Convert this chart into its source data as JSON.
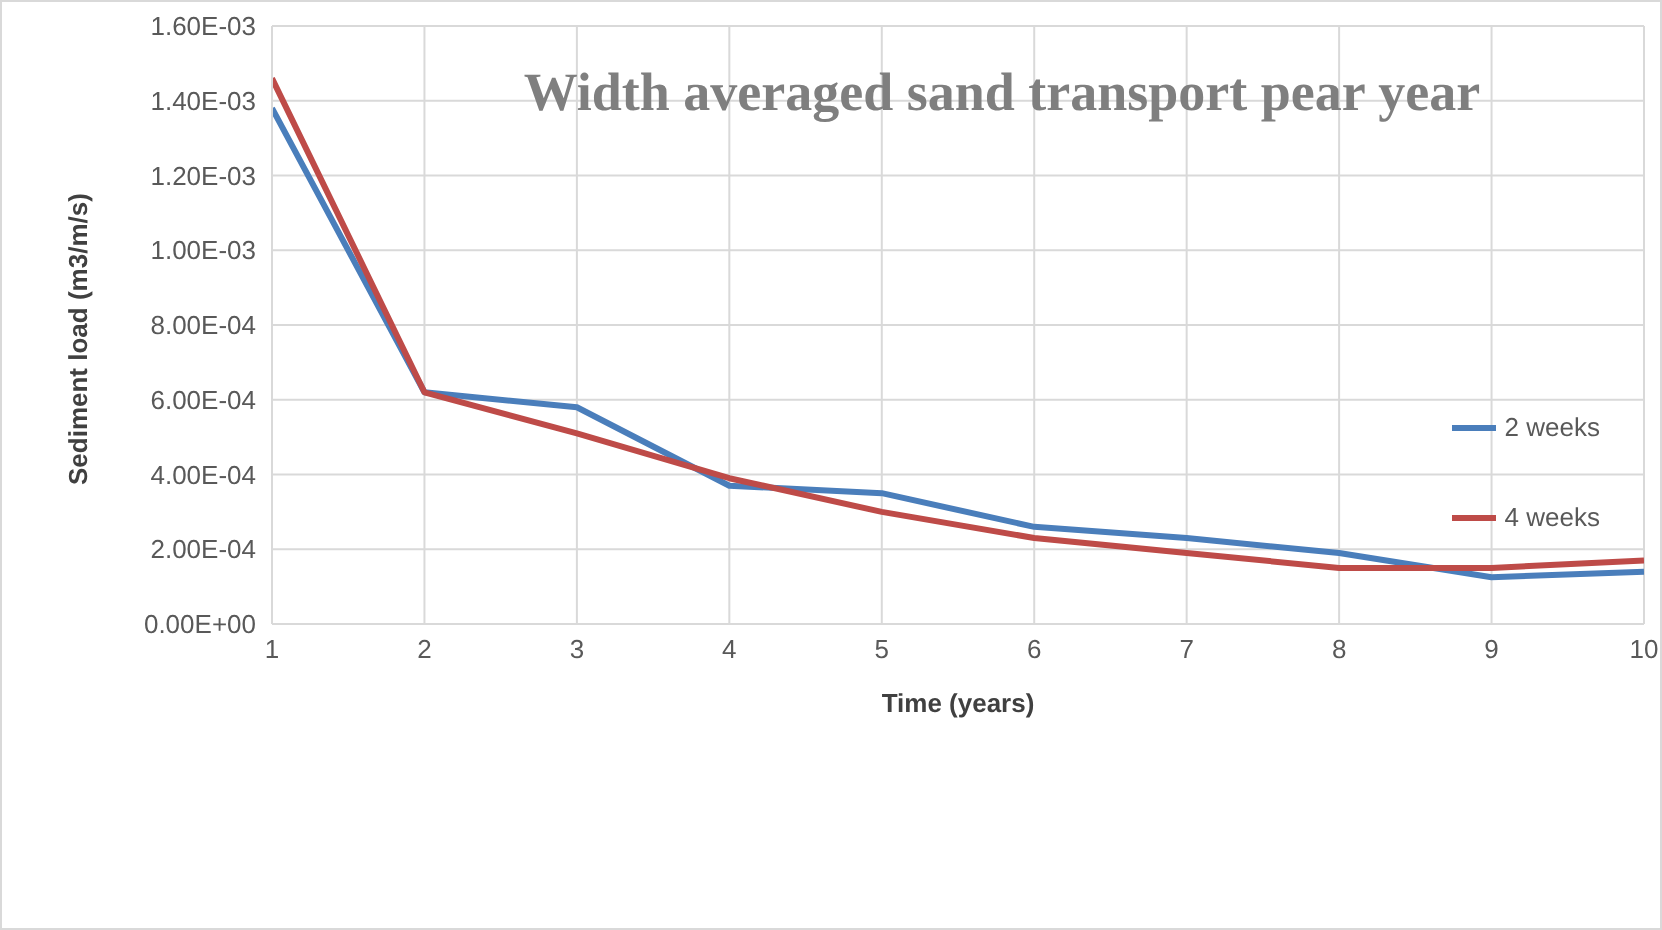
{
  "chart_data": {
    "type": "line",
    "title": "Width averaged sand transport pear year",
    "xlabel": "Time (years)",
    "ylabel": "Sediment load (m3/m/s)",
    "x": [
      1,
      2,
      3,
      4,
      5,
      6,
      7,
      8,
      9,
      10
    ],
    "series": [
      {
        "name": "2 weeks",
        "color": "#4a7ebb",
        "values": [
          0.00138,
          0.00062,
          0.00058,
          0.00037,
          0.00035,
          0.00026,
          0.00023,
          0.00019,
          0.000125,
          0.00014
        ]
      },
      {
        "name": "4 weeks",
        "color": "#be4b48",
        "values": [
          0.00146,
          0.00062,
          0.00051,
          0.00039,
          0.0003,
          0.00023,
          0.00019,
          0.00015,
          0.00015,
          0.00017
        ]
      }
    ],
    "xlim": [
      1,
      10
    ],
    "xticks": [
      1,
      2,
      3,
      4,
      5,
      6,
      7,
      8,
      9,
      10
    ],
    "ylim": [
      0,
      0.0016
    ],
    "yticks": [
      {
        "value": 0,
        "label": "0.00E+00"
      },
      {
        "value": 0.0002,
        "label": "2.00E-04"
      },
      {
        "value": 0.0004,
        "label": "4.00E-04"
      },
      {
        "value": 0.0006,
        "label": "6.00E-04"
      },
      {
        "value": 0.0008,
        "label": "8.00E-04"
      },
      {
        "value": 0.001,
        "label": "1.00E-03"
      },
      {
        "value": 0.0012,
        "label": "1.20E-03"
      },
      {
        "value": 0.0014,
        "label": "1.40E-03"
      },
      {
        "value": 0.0016,
        "label": "1.60E-03"
      }
    ],
    "grid": true,
    "legend": "right",
    "marker": "none",
    "line_style": "solid"
  }
}
